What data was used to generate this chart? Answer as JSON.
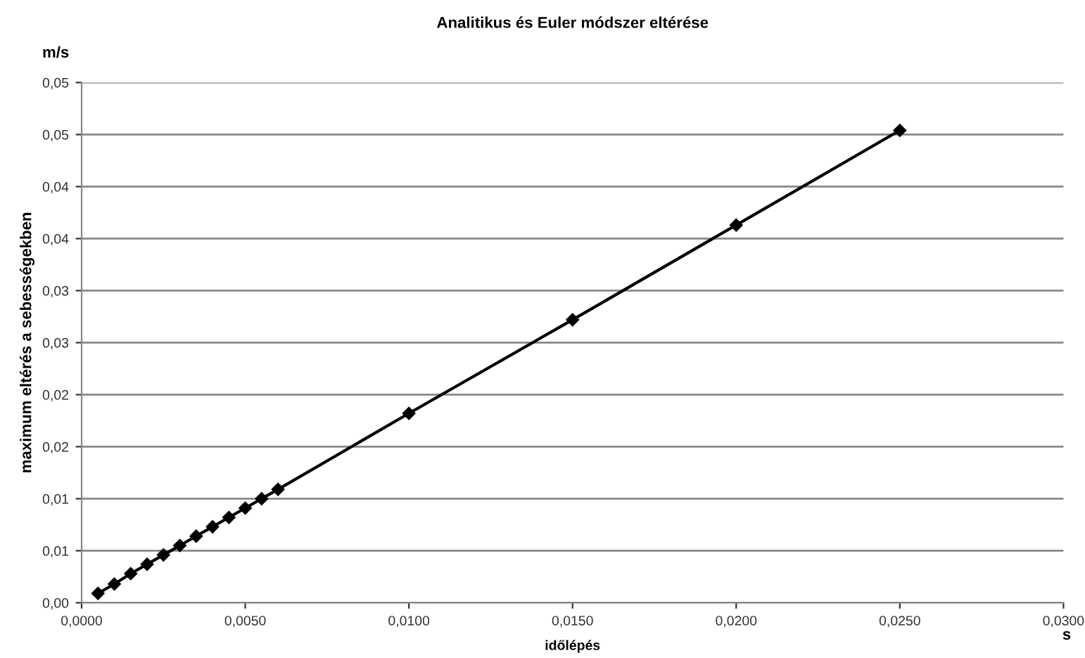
{
  "chart_data": {
    "type": "line",
    "title": "Analitikus és Euler módszer eltérése",
    "xlabel": "időlépés",
    "ylabel": "maximum eltérés a sebességekben",
    "annotations": [
      "m/s",
      "s"
    ],
    "x": [
      0.0005,
      0.001,
      0.0015,
      0.002,
      0.0025,
      0.003,
      0.0035,
      0.004,
      0.0045,
      0.005,
      0.0055,
      0.006,
      0.01,
      0.015,
      0.02,
      0.025
    ],
    "series": [
      {
        "color": "#000000",
        "values": [
          0.0009,
          0.0018,
          0.0028,
          0.0037,
          0.0046,
          0.0055,
          0.0064,
          0.0073,
          0.0082,
          0.0091,
          0.01,
          0.0109,
          0.0182,
          0.0272,
          0.0363,
          0.0454
        ]
      }
    ],
    "marker": "diamond",
    "line_style": "solid",
    "grid": "y",
    "legend": false,
    "xlim": [
      0,
      0.03
    ],
    "xticks": [
      {
        "value": 0,
        "label": "0,0000"
      },
      {
        "value": 0.005,
        "label": "0,0050"
      },
      {
        "value": 0.01,
        "label": "0,0100"
      },
      {
        "value": 0.015,
        "label": "0,0150"
      },
      {
        "value": 0.02,
        "label": "0,0200"
      },
      {
        "value": 0.025,
        "label": "0,0250"
      },
      {
        "value": 0.03,
        "label": "0,0300"
      }
    ],
    "ylim": [
      0,
      0.05
    ],
    "yticks": [
      {
        "value": 0,
        "label": "0,00"
      },
      {
        "value": 0.005,
        "label": "0,01"
      },
      {
        "value": 0.01,
        "label": "0,01"
      },
      {
        "value": 0.015,
        "label": "0,02"
      },
      {
        "value": 0.02,
        "label": "0,02"
      },
      {
        "value": 0.025,
        "label": "0,03"
      },
      {
        "value": 0.03,
        "label": "0,03"
      },
      {
        "value": 0.035,
        "label": "0,04"
      },
      {
        "value": 0.04,
        "label": "0,04"
      },
      {
        "value": 0.045,
        "label": "0,05"
      },
      {
        "value": 0.05,
        "label": "0,05"
      }
    ]
  }
}
